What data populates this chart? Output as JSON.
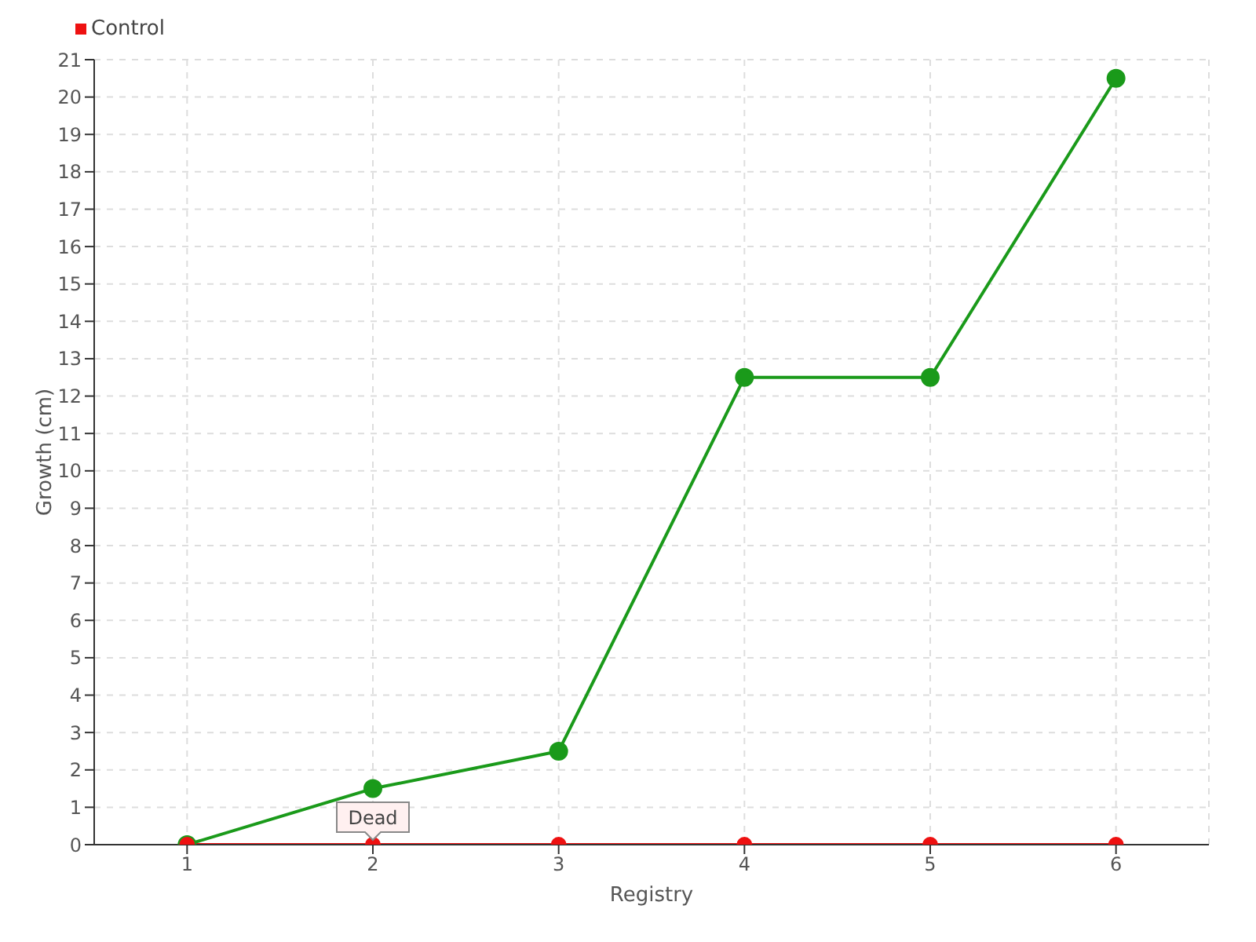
{
  "chart_data": {
    "type": "line",
    "xlabel": "Registry",
    "ylabel": "Growth (cm)",
    "categories": [
      "1",
      "2",
      "3",
      "4",
      "5",
      "6"
    ],
    "series": [
      {
        "color": "#1a9a1a",
        "values": [
          0,
          1.5,
          2.5,
          12.5,
          12.5,
          20.5
        ]
      },
      {
        "name": "Control",
        "color": "#ee1111",
        "values": [
          0,
          0,
          0,
          0,
          0,
          0
        ]
      }
    ],
    "ylim": [
      0,
      21
    ],
    "yticks": [
      0,
      1,
      2,
      3,
      4,
      5,
      6,
      7,
      8,
      9,
      10,
      11,
      12,
      13,
      14,
      15,
      16,
      17,
      18,
      19,
      20,
      21
    ],
    "grid": true,
    "legend": "top left",
    "marker": "circle",
    "line_style": "solid",
    "annotations": [
      {
        "text": "Dead",
        "x": "2",
        "y": 0
      }
    ]
  }
}
